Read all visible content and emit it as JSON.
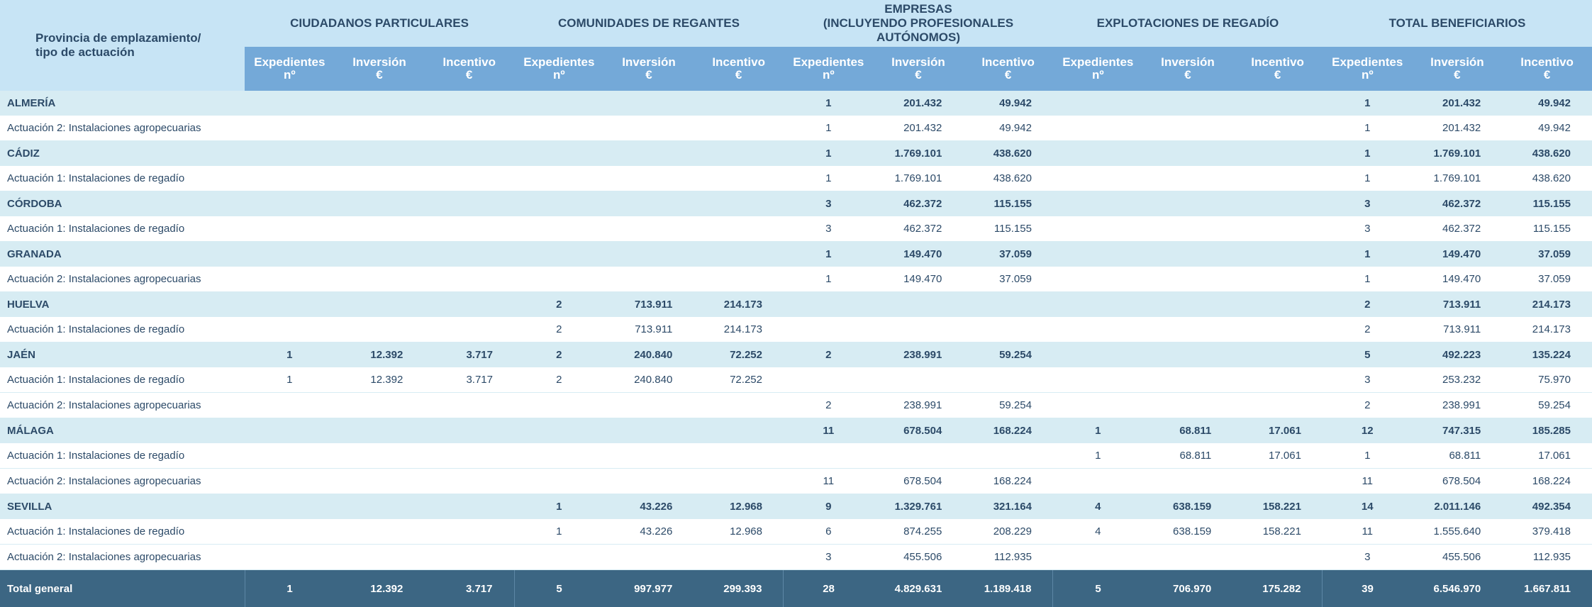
{
  "header": {
    "corner": "Provincia de emplazamiento/\ntipo de actuación",
    "groups": [
      "CIUDADANOS PARTICULARES",
      "COMUNIDADES DE REGANTES",
      "EMPRESAS\n(INCLUYENDO PROFESIONALES AUTÓNOMOS)",
      "EXPLOTACIONES DE REGADÍO",
      "TOTAL BENEFICIARIOS"
    ],
    "columns": [
      "Expedientes\nnº",
      "Inversión\n€",
      "Incentivo\n€"
    ]
  },
  "table": {
    "rows": [
      {
        "level": "province",
        "cells": [
          "ALMERÍA",
          null,
          null,
          null,
          null,
          null,
          null,
          "1",
          "201.432",
          "49.942",
          null,
          null,
          null,
          "1",
          "201.432",
          "49.942"
        ]
      },
      {
        "level": "action",
        "cells": [
          "Actuación 2: Instalaciones agropecuarias",
          null,
          null,
          null,
          null,
          null,
          null,
          "1",
          "201.432",
          "49.942",
          null,
          null,
          null,
          "1",
          "201.432",
          "49.942"
        ]
      },
      {
        "level": "province",
        "cells": [
          "CÁDIZ",
          null,
          null,
          null,
          null,
          null,
          null,
          "1",
          "1.769.101",
          "438.620",
          null,
          null,
          null,
          "1",
          "1.769.101",
          "438.620"
        ]
      },
      {
        "level": "action",
        "cells": [
          "Actuación 1: Instalaciones de regadío",
          null,
          null,
          null,
          null,
          null,
          null,
          "1",
          "1.769.101",
          "438.620",
          null,
          null,
          null,
          "1",
          "1.769.101",
          "438.620"
        ]
      },
      {
        "level": "province",
        "cells": [
          "CÓRDOBA",
          null,
          null,
          null,
          null,
          null,
          null,
          "3",
          "462.372",
          "115.155",
          null,
          null,
          null,
          "3",
          "462.372",
          "115.155"
        ]
      },
      {
        "level": "action",
        "cells": [
          "Actuación 1: Instalaciones de regadío",
          null,
          null,
          null,
          null,
          null,
          null,
          "3",
          "462.372",
          "115.155",
          null,
          null,
          null,
          "3",
          "462.372",
          "115.155"
        ]
      },
      {
        "level": "province",
        "cells": [
          "GRANADA",
          null,
          null,
          null,
          null,
          null,
          null,
          "1",
          "149.470",
          "37.059",
          null,
          null,
          null,
          "1",
          "149.470",
          "37.059"
        ]
      },
      {
        "level": "action",
        "cells": [
          "Actuación 2: Instalaciones agropecuarias",
          null,
          null,
          null,
          null,
          null,
          null,
          "1",
          "149.470",
          "37.059",
          null,
          null,
          null,
          "1",
          "149.470",
          "37.059"
        ]
      },
      {
        "level": "province",
        "cells": [
          "HUELVA",
          null,
          null,
          null,
          "2",
          "713.911",
          "214.173",
          null,
          null,
          null,
          null,
          null,
          null,
          "2",
          "713.911",
          "214.173"
        ]
      },
      {
        "level": "action",
        "cells": [
          "Actuación 1: Instalaciones de regadío",
          null,
          null,
          null,
          "2",
          "713.911",
          "214.173",
          null,
          null,
          null,
          null,
          null,
          null,
          "2",
          "713.911",
          "214.173"
        ]
      },
      {
        "level": "province",
        "cells": [
          "JAÉN",
          "1",
          "12.392",
          "3.717",
          "2",
          "240.840",
          "72.252",
          "2",
          "238.991",
          "59.254",
          null,
          null,
          null,
          "5",
          "492.223",
          "135.224"
        ]
      },
      {
        "level": "action",
        "cells": [
          "Actuación 1: Instalaciones de regadío",
          "1",
          "12.392",
          "3.717",
          "2",
          "240.840",
          "72.252",
          null,
          null,
          null,
          null,
          null,
          null,
          "3",
          "253.232",
          "75.970"
        ]
      },
      {
        "level": "action",
        "cells": [
          "Actuación 2: Instalaciones agropecuarias",
          null,
          null,
          null,
          null,
          null,
          null,
          "2",
          "238.991",
          "59.254",
          null,
          null,
          null,
          "2",
          "238.991",
          "59.254"
        ]
      },
      {
        "level": "province",
        "cells": [
          "MÁLAGA",
          null,
          null,
          null,
          null,
          null,
          null,
          "11",
          "678.504",
          "168.224",
          "1",
          "68.811",
          "17.061",
          "12",
          "747.315",
          "185.285"
        ]
      },
      {
        "level": "action",
        "cells": [
          "Actuación 1: Instalaciones de regadío",
          null,
          null,
          null,
          null,
          null,
          null,
          null,
          null,
          null,
          "1",
          "68.811",
          "17.061",
          "1",
          "68.811",
          "17.061"
        ]
      },
      {
        "level": "action",
        "cells": [
          "Actuación 2: Instalaciones agropecuarias",
          null,
          null,
          null,
          null,
          null,
          null,
          "11",
          "678.504",
          "168.224",
          null,
          null,
          null,
          "11",
          "678.504",
          "168.224"
        ]
      },
      {
        "level": "province",
        "cells": [
          "SEVILLA",
          null,
          null,
          null,
          "1",
          "43.226",
          "12.968",
          "9",
          "1.329.761",
          "321.164",
          "4",
          "638.159",
          "158.221",
          "14",
          "2.011.146",
          "492.354"
        ]
      },
      {
        "level": "action",
        "cells": [
          "Actuación 1: Instalaciones de regadío",
          null,
          null,
          null,
          "1",
          "43.226",
          "12.968",
          "6",
          "874.255",
          "208.229",
          "4",
          "638.159",
          "158.221",
          "11",
          "1.555.640",
          "379.418"
        ]
      },
      {
        "level": "action",
        "cells": [
          "Actuación 2: Instalaciones agropecuarias",
          null,
          null,
          null,
          null,
          null,
          null,
          "3",
          "455.506",
          "112.935",
          null,
          null,
          null,
          "3",
          "455.506",
          "112.935"
        ]
      },
      {
        "level": "total",
        "cells": [
          "Total general",
          "1",
          "12.392",
          "3.717",
          "5",
          "997.977",
          "299.393",
          "28",
          "4.829.631",
          "1.189.418",
          "5",
          "706.970",
          "175.282",
          "39",
          "6.546.970",
          "1.667.811"
        ]
      }
    ]
  }
}
